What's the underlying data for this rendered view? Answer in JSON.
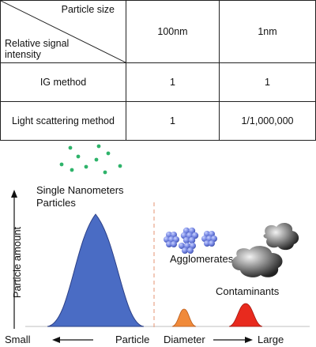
{
  "table": {
    "header_top": "Particle size",
    "header_bottom_line1": "Relative signal",
    "header_bottom_line2": "intensity",
    "col1": "100nm",
    "col2": "1nm",
    "rows": [
      {
        "label": "IG method",
        "v1": "1",
        "v2": "1"
      },
      {
        "label": "Light scattering method",
        "v1": "1",
        "v2": "1/1,000,000"
      }
    ]
  },
  "diagram": {
    "label_nano_line1": "Single Nanometers",
    "label_nano_line2": "Particles",
    "label_agglomerates": "Agglomerates",
    "label_contaminants": "Contaminants",
    "y_axis_label": "Particle amount",
    "x_axis_small": "Small",
    "x_axis_title_a": "Particle",
    "x_axis_title_b": "Diameter",
    "x_axis_large": "Large",
    "colors": {
      "nano_peak": "#4a6cc4",
      "agglomerate_peak": "#f08a3a",
      "contaminant_peak": "#e82a1e",
      "green_dots": "#2eb36a",
      "divider": "#e8a58a"
    }
  }
}
